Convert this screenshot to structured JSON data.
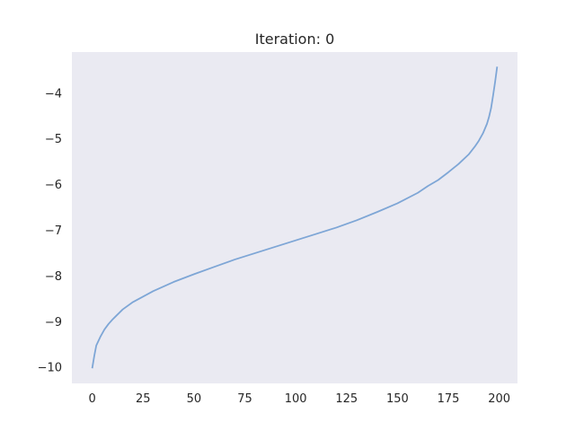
{
  "chart_data": {
    "type": "line",
    "title": "Iteration: 0",
    "xlabel": "",
    "ylabel": "",
    "xlim": [
      -10,
      209
    ],
    "ylim": [
      -10.35,
      -3.1
    ],
    "xticks": [
      0,
      25,
      50,
      75,
      100,
      125,
      150,
      175,
      200
    ],
    "yticks": [
      -10,
      -9,
      -8,
      -7,
      -6,
      -5,
      -4
    ],
    "ytick_labels": [
      "−10",
      "−9",
      "−8",
      "−7",
      "−6",
      "−5",
      "−4"
    ],
    "grid": false,
    "background": "#eaeaf2",
    "line_color": "#7ea6d6",
    "series": [
      {
        "x": [
          0,
          1,
          2,
          4,
          6,
          8,
          10,
          15,
          20,
          25,
          30,
          40,
          50,
          60,
          70,
          80,
          90,
          100,
          110,
          120,
          130,
          140,
          150,
          160,
          165,
          170,
          175,
          180,
          185,
          188,
          190,
          192,
          194,
          195,
          196,
          197,
          198,
          199
        ],
        "values": [
          -10.02,
          -9.75,
          -9.52,
          -9.33,
          -9.17,
          -9.05,
          -8.95,
          -8.73,
          -8.57,
          -8.45,
          -8.33,
          -8.13,
          -7.96,
          -7.8,
          -7.64,
          -7.5,
          -7.36,
          -7.22,
          -7.08,
          -6.94,
          -6.78,
          -6.6,
          -6.41,
          -6.18,
          -6.03,
          -5.9,
          -5.73,
          -5.55,
          -5.34,
          -5.17,
          -5.04,
          -4.88,
          -4.67,
          -4.52,
          -4.33,
          -4.05,
          -3.75,
          -3.42
        ]
      }
    ]
  }
}
